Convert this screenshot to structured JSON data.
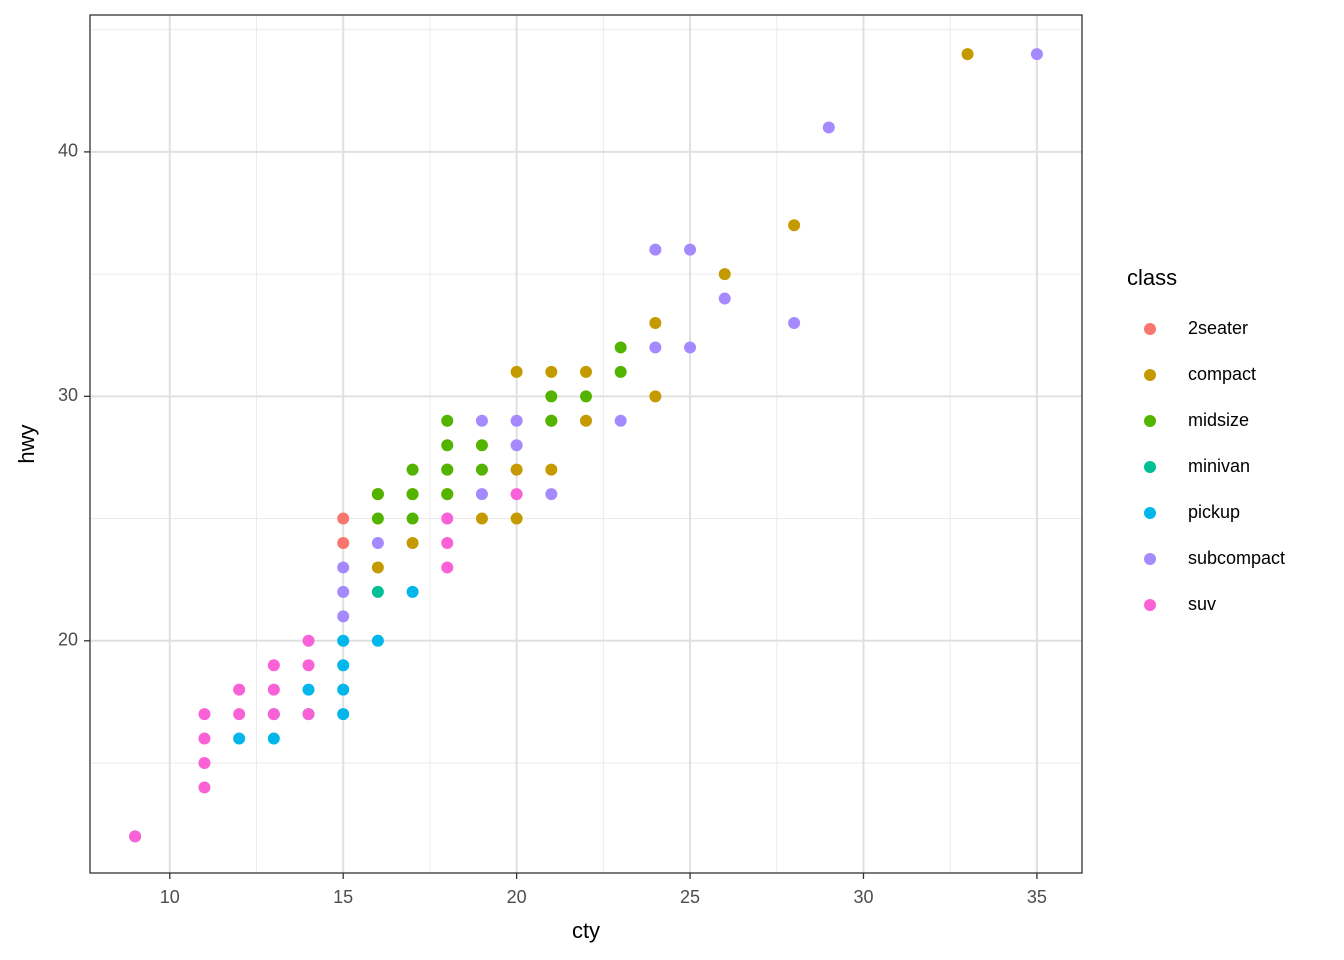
{
  "chart_data": {
    "type": "scatter",
    "x_label": "cty",
    "y_label": "hwy",
    "legend_title": "class",
    "xlim": [
      7.7,
      36.3
    ],
    "ylim": [
      10.5,
      45.6
    ],
    "xticks": [
      10,
      15,
      20,
      25,
      30,
      35
    ],
    "yticks": [
      20,
      30,
      40
    ],
    "grid": true,
    "legend": "right",
    "series": [
      {
        "name": "2seater",
        "color": "#F8766D",
        "x": [
          15,
          15,
          16
        ],
        "y": [
          25,
          24,
          26
        ]
      },
      {
        "name": "compact",
        "color": "#C49A00",
        "x": [
          33,
          28,
          26,
          24,
          24,
          22,
          22,
          21,
          21,
          21,
          20,
          20,
          20,
          19,
          18,
          18,
          17,
          17,
          16,
          16
        ],
        "y": [
          44,
          37,
          35,
          33,
          30,
          31,
          29,
          31,
          29,
          27,
          31,
          27,
          25,
          25,
          27,
          26,
          24,
          26,
          23,
          26
        ]
      },
      {
        "name": "midsize",
        "color": "#53B400",
        "x": [
          23,
          23,
          22,
          21,
          21,
          18,
          18,
          19,
          19,
          18,
          17,
          17,
          17,
          16,
          16,
          18
        ],
        "y": [
          32,
          31,
          30,
          30,
          29,
          29,
          28,
          28,
          27,
          26,
          27,
          26,
          25,
          26,
          25,
          27
        ]
      },
      {
        "name": "minivan",
        "color": "#00C094",
        "x": [
          16
        ],
        "y": [
          22
        ]
      },
      {
        "name": "pickup",
        "color": "#00B6EB",
        "x": [
          17,
          16,
          15,
          15,
          15,
          15,
          14,
          14,
          13,
          13,
          12,
          9
        ],
        "y": [
          22,
          20,
          20,
          19,
          18,
          17,
          18,
          17,
          17,
          16,
          16,
          12
        ]
      },
      {
        "name": "subcompact",
        "color": "#A58AFF",
        "x": [
          35,
          29,
          24,
          25,
          26,
          28,
          24,
          25,
          23,
          21,
          20,
          20,
          19,
          19,
          16,
          15,
          15,
          15
        ],
        "y": [
          44,
          41,
          36,
          36,
          34,
          33,
          32,
          32,
          29,
          26,
          29,
          28,
          29,
          26,
          24,
          23,
          22,
          21
        ]
      },
      {
        "name": "suv",
        "color": "#FB61D7",
        "x": [
          20,
          18,
          18,
          18,
          14,
          14,
          14,
          13,
          13,
          13,
          12,
          12,
          11,
          11,
          11,
          11,
          9
        ],
        "y": [
          26,
          25,
          24,
          23,
          20,
          19,
          17,
          19,
          18,
          17,
          18,
          17,
          17,
          16,
          15,
          14,
          12
        ]
      }
    ]
  }
}
